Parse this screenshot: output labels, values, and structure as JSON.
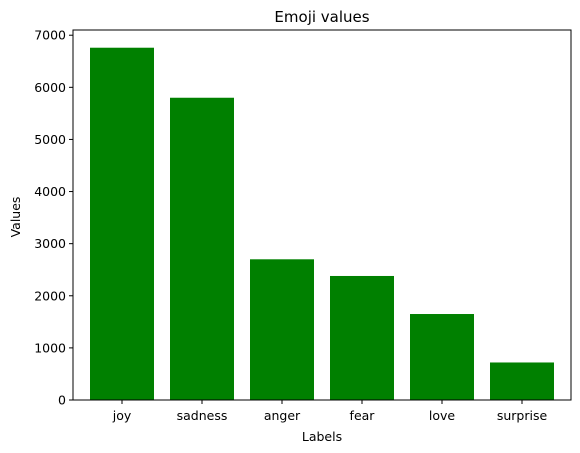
{
  "chart_data": {
    "type": "bar",
    "title": "Emoji values",
    "xlabel": "Labels",
    "ylabel": "Values",
    "categories": [
      "joy",
      "sadness",
      "anger",
      "fear",
      "love",
      "surprise"
    ],
    "values": [
      6760,
      5800,
      2700,
      2380,
      1650,
      720
    ],
    "ylim": [
      0,
      7100
    ],
    "yticks": [
      0,
      1000,
      2000,
      3000,
      4000,
      5000,
      6000,
      7000
    ],
    "bar_color": "#008000",
    "grid": false,
    "legend": "none"
  }
}
